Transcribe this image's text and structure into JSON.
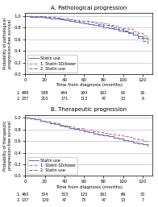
{
  "chart_data": [
    {
      "type": "step",
      "title": "A. Pathological progression",
      "xlabel": "Time from diagnosis (months)",
      "ylabel": "Probability of pathological\nprogression-free survival",
      "x": [
        0,
        5,
        10,
        15,
        20,
        25,
        30,
        35,
        40,
        45,
        50,
        55,
        60,
        65,
        70,
        75,
        80,
        85,
        90,
        95,
        100,
        105,
        110,
        115,
        120,
        125
      ],
      "series": [
        {
          "name": "Statin use",
          "color": "#7070b8",
          "line_style": "solid",
          "values": [
            1.0,
            0.99,
            0.99,
            0.98,
            0.97,
            0.96,
            0.95,
            0.94,
            0.93,
            0.91,
            0.9,
            0.89,
            0.87,
            0.86,
            0.84,
            0.83,
            0.81,
            0.79,
            0.77,
            0.75,
            0.73,
            0.7,
            0.68,
            0.65,
            0.62,
            0.6
          ]
        },
        {
          "name": "1. Statin SD/lower",
          "color": "#d08080",
          "line_style": "dashed",
          "values": [
            1.0,
            1.0,
            1.0,
            1.0,
            0.99,
            0.98,
            0.97,
            0.96,
            0.95,
            0.94,
            0.93,
            0.92,
            0.91,
            0.9,
            0.89,
            0.88,
            0.87,
            0.85,
            0.83,
            0.81,
            0.79,
            0.77,
            0.74,
            0.71,
            0.67,
            0.64
          ]
        },
        {
          "name": "2. Statin use",
          "color": "#7070b8",
          "line_style": "dashed",
          "values": [
            1.0,
            1.0,
            1.0,
            1.0,
            0.99,
            0.98,
            0.97,
            0.96,
            0.95,
            0.94,
            0.93,
            0.92,
            0.91,
            0.9,
            0.88,
            0.86,
            0.85,
            0.83,
            0.81,
            0.78,
            0.75,
            0.72,
            0.68,
            0.63,
            0.57,
            0.52
          ]
        }
      ],
      "xlim": [
        0,
        130
      ],
      "ylim": [
        0.0,
        1.05
      ],
      "xticks": [
        0,
        20,
        40,
        60,
        80,
        100,
        120
      ],
      "yticks": [
        0.0,
        0.2,
        0.4,
        0.6,
        0.8,
        1.0
      ],
      "grid": "y",
      "legend": "lower left",
      "at_risk_times": [
        0,
        20,
        40,
        60,
        80,
        100,
        120
      ],
      "at_risk_rows": [
        {
          "label": "1.",
          "values": [
            689,
            588,
            444,
            294,
            161,
            65,
            26
          ]
        },
        {
          "label": "2.",
          "values": [
            237,
            210,
            171,
            113,
            47,
            13,
            6
          ]
        }
      ]
    },
    {
      "type": "step",
      "title": "B. Therapeutic progression",
      "xlabel": "Time from diagnosis (months)",
      "ylabel": "Probability of therapeutic\nprogression-free survival",
      "x": [
        0,
        5,
        10,
        15,
        20,
        25,
        30,
        35,
        40,
        45,
        50,
        55,
        60,
        65,
        70,
        75,
        80,
        85,
        90,
        95,
        100,
        105,
        110,
        115,
        120,
        125
      ],
      "series": [
        {
          "name": "Statin use",
          "color": "#7070b8",
          "line_style": "solid",
          "values": [
            1.0,
            0.99,
            0.97,
            0.95,
            0.93,
            0.91,
            0.89,
            0.87,
            0.85,
            0.83,
            0.81,
            0.79,
            0.77,
            0.75,
            0.73,
            0.71,
            0.7,
            0.68,
            0.66,
            0.64,
            0.62,
            0.6,
            0.58,
            0.56,
            0.54,
            0.52
          ]
        },
        {
          "name": "1. Statin SD/lower",
          "color": "#d08080",
          "line_style": "dashed",
          "values": [
            1.0,
            0.99,
            0.97,
            0.95,
            0.93,
            0.92,
            0.9,
            0.88,
            0.86,
            0.85,
            0.83,
            0.82,
            0.8,
            0.79,
            0.77,
            0.76,
            0.74,
            0.73,
            0.71,
            0.7,
            0.68,
            0.67,
            0.65,
            0.63,
            0.6,
            0.57
          ]
        },
        {
          "name": "2. Statin use",
          "color": "#7070b8",
          "line_style": "dashed",
          "values": [
            1.0,
            0.99,
            0.97,
            0.95,
            0.93,
            0.91,
            0.89,
            0.87,
            0.85,
            0.83,
            0.81,
            0.79,
            0.77,
            0.75,
            0.73,
            0.71,
            0.7,
            0.68,
            0.66,
            0.64,
            0.62,
            0.6,
            0.58,
            0.56,
            0.54,
            0.52
          ]
        }
      ],
      "xlim": [
        0,
        130
      ],
      "ylim": [
        0.0,
        1.05
      ],
      "xticks": [
        0,
        20,
        40,
        60,
        80,
        100,
        120
      ],
      "yticks": [
        0.0,
        0.2,
        0.4,
        0.6,
        0.8,
        1.0
      ],
      "grid": "y",
      "legend": "lower left",
      "at_risk_times": [
        0,
        20,
        40,
        60,
        80,
        100,
        120
      ],
      "at_risk_rows": [
        {
          "label": "1.",
          "values": [
            460,
            304,
            303,
            120,
            161,
            69,
            30
          ]
        },
        {
          "label": "2.",
          "values": [
            137,
            129,
            47,
            73,
            47,
            13,
            7
          ]
        }
      ]
    }
  ]
}
